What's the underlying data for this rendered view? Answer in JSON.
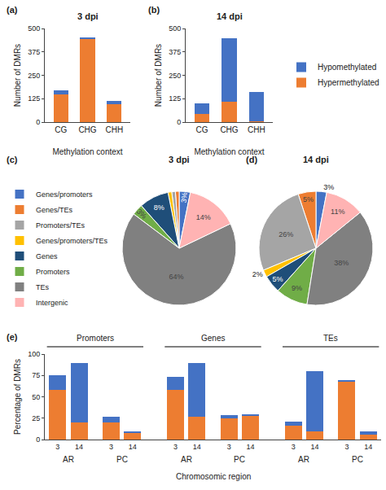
{
  "chart_data": [
    {
      "type": "bar",
      "title": "3 dpi",
      "annotations": [
        "(a)"
      ],
      "categories": [
        "CG",
        "CHG",
        "CHH"
      ],
      "series": [
        {
          "name": "Hypermethylated",
          "color": "#ED7D31",
          "values": [
            150,
            445,
            95
          ]
        },
        {
          "name": "Hypomethylated",
          "color": "#4472C4",
          "values": [
            20,
            5,
            20
          ]
        }
      ],
      "xlabel": "Methylation context",
      "ylabel": "Number of DMRs",
      "ylim": [
        0,
        500
      ],
      "yticks": [
        0,
        125,
        250,
        375,
        500
      ],
      "stacked": true,
      "grid": false
    },
    {
      "type": "bar",
      "title": "14 dpi",
      "annotations": [
        "(b)"
      ],
      "categories": [
        "CG",
        "CHG",
        "CHH"
      ],
      "series": [
        {
          "name": "Hypermethylated",
          "color": "#ED7D31",
          "values": [
            45,
            110,
            5
          ]
        },
        {
          "name": "Hypomethylated",
          "color": "#4472C4",
          "values": [
            55,
            340,
            155
          ]
        }
      ],
      "xlabel": "Methylation context",
      "ylabel": "Number of DMRs",
      "ylim": [
        0,
        500
      ],
      "yticks": [
        0,
        125,
        250,
        375,
        500
      ],
      "stacked": true,
      "grid": false,
      "legend": "right"
    },
    {
      "type": "pie",
      "title": "3 dpi",
      "annotations": [
        "(c)"
      ],
      "categories": [
        "Genes/promoters",
        "Genes/TEs",
        "Promoters/TEs",
        "Genes/promoters/TEs",
        "Genes",
        "Promoters",
        "TEs",
        "Intergenic"
      ],
      "values": [
        3,
        1,
        1,
        1,
        8,
        3,
        64,
        14
      ],
      "value_labels": [
        "3%",
        null,
        null,
        null,
        "8%",
        "3%",
        "64%",
        "14%"
      ],
      "colors": [
        "#4472C4",
        "#ED7D31",
        "#A5A5A5",
        "#FFC000",
        "#1F4E79",
        "#70AD47",
        "#808080",
        "#FFB3B3"
      ],
      "data_labels": true,
      "legend": "left"
    },
    {
      "type": "pie",
      "title": "14 dpi",
      "annotations": [
        "(d)"
      ],
      "categories": [
        "Genes/promoters",
        "Genes/TEs",
        "Promoters/TEs",
        "Genes/promoters/TEs",
        "Genes",
        "Promoters",
        "TEs",
        "Intergenic"
      ],
      "values": [
        3,
        5,
        26,
        2,
        5,
        9,
        38,
        11
      ],
      "value_labels": [
        "3%",
        "5%",
        "26%",
        "2%",
        "5%",
        "9%",
        "38%",
        "11%"
      ],
      "colors": [
        "#4472C4",
        "#ED7D31",
        "#A5A5A5",
        "#FFC000",
        "#1F4E79",
        "#70AD47",
        "#808080",
        "#FFB3B3"
      ],
      "data_labels": true
    },
    {
      "type": "bar",
      "annotations": [
        "(e)"
      ],
      "categories": [
        "3",
        "14",
        "3",
        "14",
        "3",
        "14",
        "3",
        "14",
        "3",
        "14",
        "3",
        "14"
      ],
      "group_labels": [
        "AR",
        "PC",
        "AR",
        "PC",
        "AR",
        "PC"
      ],
      "section_labels": [
        "Promoters",
        "Genes",
        "TEs"
      ],
      "series": [
        {
          "name": "Hypermethylated",
          "color": "#ED7D31",
          "values": [
            58,
            20,
            20,
            8,
            58,
            27,
            25,
            28,
            16,
            10,
            68,
            6
          ]
        },
        {
          "name": "Hypomethylated",
          "color": "#4472C4",
          "values": [
            17,
            70,
            7,
            2,
            15,
            63,
            4,
            2,
            5,
            70,
            2,
            4
          ]
        }
      ],
      "xlabel": "Chromosomic region",
      "ylabel": "Percentage of DMRs",
      "ylim": [
        0,
        100
      ],
      "yticks": [
        0,
        25,
        50,
        75,
        100
      ],
      "stacked": true,
      "grid": false
    }
  ]
}
